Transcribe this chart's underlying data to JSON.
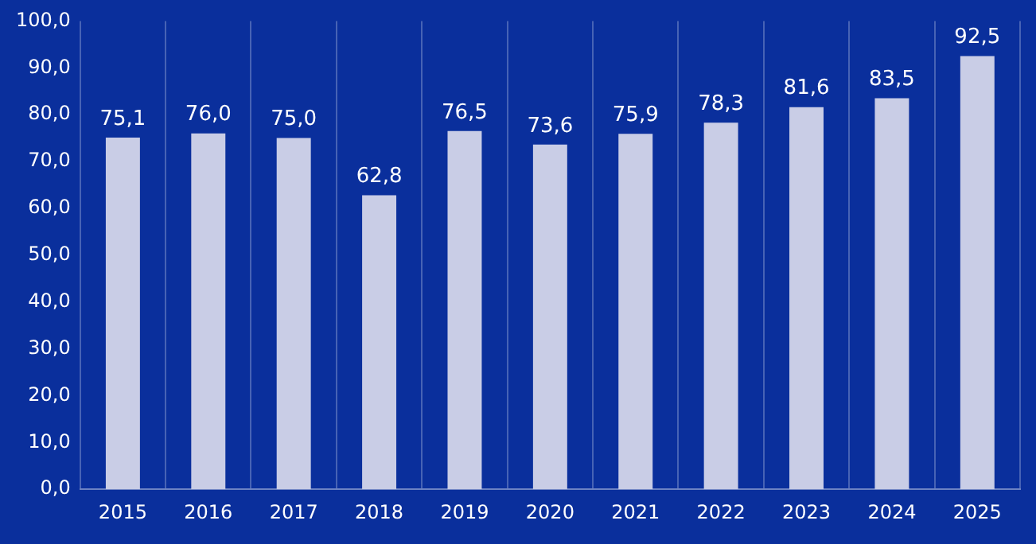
{
  "chart_data": {
    "type": "bar",
    "categories": [
      "2015",
      "2016",
      "2017",
      "2018",
      "2019",
      "2020",
      "2021",
      "2022",
      "2023",
      "2024",
      "2025"
    ],
    "values": [
      75.1,
      76.0,
      75.0,
      62.8,
      76.5,
      73.6,
      75.9,
      78.3,
      81.6,
      83.5,
      92.5
    ],
    "value_labels": [
      "75,1",
      "76,0",
      "75,0",
      "62,8",
      "76,5",
      "73,6",
      "75,9",
      "78,3",
      "81,6",
      "83,5",
      "92,5"
    ],
    "color": "#c9cde6",
    "ylim": [
      0,
      100
    ],
    "yticks": [
      {
        "value": 0,
        "label": "0,0"
      },
      {
        "value": 10,
        "label": "10,0"
      },
      {
        "value": 20,
        "label": "20,0"
      },
      {
        "value": 30,
        "label": "30,0"
      },
      {
        "value": 40,
        "label": "40,0"
      },
      {
        "value": 50,
        "label": "50,0"
      },
      {
        "value": 60,
        "label": "60,0"
      },
      {
        "value": 70,
        "label": "70,0"
      },
      {
        "value": 80,
        "label": "80,0"
      },
      {
        "value": 90,
        "label": "90,0"
      },
      {
        "value": 100,
        "label": "100,0"
      }
    ],
    "grid": "x",
    "legend": false
  }
}
